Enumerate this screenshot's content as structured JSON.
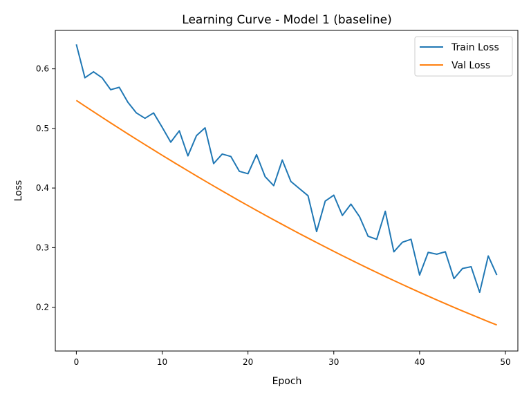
{
  "chart_data": {
    "type": "line",
    "title": "Learning Curve - Model 1 (baseline)",
    "xlabel": "Epoch",
    "ylabel": "Loss",
    "xlim": [
      -2.45,
      51.45
    ],
    "ylim": [
      0.1265,
      0.6645
    ],
    "xticks": [
      0,
      10,
      20,
      30,
      40,
      50
    ],
    "yticks": [
      0.2,
      0.3,
      0.4,
      0.5,
      0.6
    ],
    "xtick_labels": [
      "0",
      "10",
      "20",
      "30",
      "40",
      "50"
    ],
    "ytick_labels": [
      "0.2",
      "0.3",
      "0.4",
      "0.5",
      "0.6"
    ],
    "grid": false,
    "legend": "top-right",
    "x": [
      0,
      1,
      2,
      3,
      4,
      5,
      6,
      7,
      8,
      9,
      10,
      11,
      12,
      13,
      14,
      15,
      16,
      17,
      18,
      19,
      20,
      21,
      22,
      23,
      24,
      25,
      26,
      27,
      28,
      29,
      30,
      31,
      32,
      33,
      34,
      35,
      36,
      37,
      38,
      39,
      40,
      41,
      42,
      43,
      44,
      45,
      46,
      47,
      48,
      49
    ],
    "series": [
      {
        "name": "Train Loss",
        "color": "#1f77b4",
        "values": [
          0.641,
          0.585,
          0.595,
          0.585,
          0.565,
          0.569,
          0.544,
          0.526,
          0.517,
          0.526,
          0.502,
          0.477,
          0.496,
          0.454,
          0.488,
          0.501,
          0.441,
          0.457,
          0.453,
          0.428,
          0.424,
          0.456,
          0.419,
          0.404,
          0.447,
          0.411,
          0.399,
          0.387,
          0.327,
          0.378,
          0.388,
          0.354,
          0.373,
          0.352,
          0.319,
          0.314,
          0.361,
          0.293,
          0.309,
          0.314,
          0.254,
          0.292,
          0.289,
          0.293,
          0.248,
          0.265,
          0.268,
          0.225,
          0.286,
          0.254
        ]
      },
      {
        "name": "Val Loss",
        "color": "#ff7f0e",
        "values": [
          0.547,
          0.5375,
          0.528,
          0.5186,
          0.5093,
          0.5001,
          0.4909,
          0.4818,
          0.4728,
          0.4639,
          0.455,
          0.4462,
          0.4375,
          0.4289,
          0.4203,
          0.4118,
          0.4034,
          0.3951,
          0.3868,
          0.3786,
          0.3705,
          0.3625,
          0.3545,
          0.3467,
          0.3389,
          0.3312,
          0.3235,
          0.316,
          0.3085,
          0.3011,
          0.2938,
          0.2865,
          0.2794,
          0.2723,
          0.2653,
          0.2584,
          0.2515,
          0.2448,
          0.2381,
          0.2315,
          0.225,
          0.2186,
          0.2122,
          0.206,
          0.1998,
          0.1937,
          0.1877,
          0.1818,
          0.1759,
          0.1702
        ]
      }
    ]
  }
}
